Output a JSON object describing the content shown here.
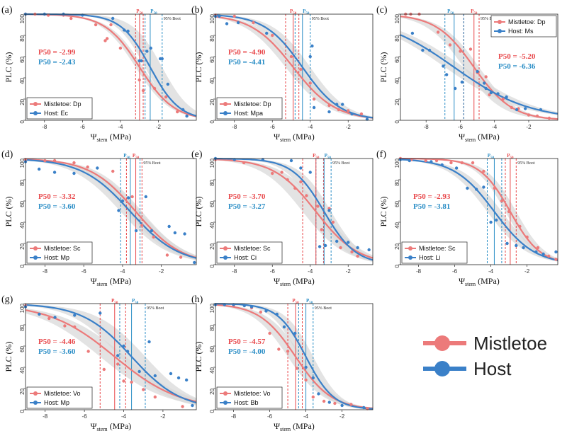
{
  "colors": {
    "mistletoe": "#ec7a7a",
    "host": "#3a80c8",
    "ci_band": "#d9d9d9",
    "p50_red": "#e8474a",
    "p50_blue": "#2b8ec6"
  },
  "common": {
    "xlabel_main": "Ψ",
    "xlabel_sub": "stem",
    "xlabel_unit": " (MPa)",
    "ylabel": "PLC (%)",
    "boot_label": "95% Boot",
    "p50_top": "P",
    "p50_sub": "50",
    "yticks": [
      "0",
      "20",
      "40",
      "60",
      "80",
      "100"
    ]
  },
  "legend": {
    "mistletoe": "Mistletoe",
    "host": "Host"
  },
  "chart_data": [
    {
      "panel": "(a)",
      "type": "scatter",
      "xlim": [
        -9,
        0
      ],
      "ylim": [
        0,
        100
      ],
      "xticks": [
        "-8",
        "-6",
        "-4",
        "-2"
      ],
      "xtick_values": [
        -8,
        -6,
        -4,
        -2
      ],
      "mistletoe": {
        "label": "Mistletoe: Dp",
        "p50_text": "P50 = -2.99",
        "p50": -2.99,
        "slope": 1.1,
        "ci": [
          -3.2,
          -2.8
        ],
        "points": [
          [
            -9,
            100
          ],
          [
            -8.5,
            100
          ],
          [
            -7.8,
            99
          ],
          [
            -7,
            99
          ],
          [
            -6.6,
            96
          ],
          [
            -5.3,
            90
          ],
          [
            -4.5,
            90
          ],
          [
            -4.8,
            75
          ],
          [
            -4.7,
            77
          ],
          [
            -4,
            68
          ],
          [
            -3,
            38
          ],
          [
            -2.8,
            28
          ],
          [
            -2.2,
            30
          ],
          [
            -1.6,
            22
          ],
          [
            -1,
            8
          ]
        ]
      },
      "host": {
        "label": "Host: Ec",
        "p50_text": "P50 = -2.43",
        "p50": -2.43,
        "slope": 1.3,
        "ci": [
          -2.7,
          -1.8
        ],
        "points": [
          [
            -9,
            100
          ],
          [
            -8,
            100
          ],
          [
            -7,
            100
          ],
          [
            -6,
            99
          ],
          [
            -4.4,
            96
          ],
          [
            -3.8,
            85
          ],
          [
            -3.6,
            84
          ],
          [
            -3,
            56
          ],
          [
            -2.9,
            56
          ],
          [
            -2.6,
            65
          ],
          [
            -2.4,
            68
          ],
          [
            -1.9,
            58
          ],
          [
            -1.8,
            58
          ],
          [
            -1.5,
            34
          ],
          [
            -0.7,
            10
          ],
          [
            -0.5,
            4
          ]
        ]
      }
    },
    {
      "panel": "(b)",
      "type": "scatter",
      "xlim": [
        -9,
        -0.7
      ],
      "ylim": [
        0,
        100
      ],
      "xticks": [
        "-8",
        "-6",
        "-4",
        "-2"
      ],
      "xtick_values": [
        -8,
        -6,
        -4,
        -2
      ],
      "mistletoe": {
        "label": "Mistletoe: Dp",
        "p50_text": "P50 = -4.90",
        "p50": -4.9,
        "slope": 0.9,
        "ci": [
          -5.3,
          -4.6
        ],
        "points": [
          [
            -9,
            99
          ],
          [
            -8,
            98
          ],
          [
            -7,
            92
          ],
          [
            -6,
            80
          ],
          [
            -5,
            60
          ],
          [
            -4.5,
            48
          ],
          [
            -4,
            35
          ],
          [
            -3.8,
            20
          ],
          [
            -3,
            14
          ],
          [
            -2.5,
            10
          ],
          [
            -2,
            9
          ],
          [
            -1.3,
            6
          ]
        ]
      },
      "host": {
        "label": "Host: Mpa",
        "p50_text": "P50 = -4.41",
        "p50": -4.41,
        "slope": 1.0,
        "ci": [
          -4.8,
          -4.0
        ],
        "points": [
          [
            -9,
            98
          ],
          [
            -8.8,
            98
          ],
          [
            -8.4,
            91
          ],
          [
            -7.8,
            92
          ],
          [
            -6.3,
            82
          ],
          [
            -4,
            60
          ],
          [
            -3.9,
            70
          ],
          [
            -3.8,
            12
          ],
          [
            -3,
            8
          ],
          [
            -2.6,
            15
          ],
          [
            -2.3,
            15
          ],
          [
            -1.8,
            6
          ],
          [
            -1,
            1
          ]
        ]
      }
    },
    {
      "panel": "(c)",
      "type": "scatter",
      "xlim": [
        -9.5,
        -0.3
      ],
      "ylim": [
        0,
        100
      ],
      "xticks": [
        "-8",
        "-6",
        "-4",
        "-2"
      ],
      "xtick_values": [
        -8,
        -6,
        -4,
        -2
      ],
      "mistletoe": {
        "label": "Mistletoe: Dp",
        "p50_text": "P50 = -5.20",
        "p50": -5.2,
        "slope": 0.9,
        "ci": [
          -5.8,
          -4.9
        ],
        "points": [
          [
            -9.2,
            100
          ],
          [
            -8.9,
            100
          ],
          [
            -8.4,
            100
          ],
          [
            -7.3,
            83
          ],
          [
            -6.6,
            71
          ],
          [
            -6,
            65
          ],
          [
            -5.4,
            67
          ],
          [
            -5,
            45
          ],
          [
            -4.5,
            41
          ],
          [
            -4.3,
            24
          ],
          [
            -3.5,
            20
          ],
          [
            -3,
            12
          ],
          [
            -2.6,
            11
          ],
          [
            -2,
            5
          ],
          [
            -1.5,
            4
          ],
          [
            -0.8,
            2
          ]
        ]
      },
      "host": {
        "label": "Host: Ms",
        "p50_text": "P50 = -6.36",
        "p50": -6.36,
        "slope": 0.45,
        "ci": [
          -6.9,
          -5.8
        ],
        "points": [
          [
            -8.8,
            82
          ],
          [
            -8.2,
            66
          ],
          [
            -7.8,
            66
          ],
          [
            -7,
            51
          ],
          [
            -6.8,
            43
          ],
          [
            -6.3,
            30
          ],
          [
            -5.9,
            36
          ],
          [
            -5,
            46
          ],
          [
            -4.6,
            35
          ],
          [
            -4.5,
            30
          ],
          [
            -4.2,
            26
          ],
          [
            -3.8,
            25
          ],
          [
            -3.3,
            22
          ],
          [
            -2.7,
            10
          ],
          [
            -2.2,
            11
          ],
          [
            -1.3,
            10
          ]
        ]
      }
    },
    {
      "panel": "(d)",
      "type": "scatter",
      "xlim": [
        -9,
        -0.2
      ],
      "ylim": [
        0,
        100
      ],
      "xticks": [
        "-8",
        "-6",
        "-4",
        "-2"
      ],
      "xtick_values": [
        -8,
        -6,
        -4,
        -2
      ],
      "mistletoe": {
        "label": "Mistletoe: Sc",
        "p50_text": "P50 = -3.32",
        "p50": -3.32,
        "slope": 0.85,
        "ci": [
          -3.8,
          -3.0
        ],
        "points": [
          [
            -9,
            99
          ],
          [
            -8,
            98
          ],
          [
            -7.5,
            98
          ],
          [
            -6.5,
            96
          ],
          [
            -5.8,
            92
          ],
          [
            -4.5,
            88
          ],
          [
            -3.5,
            64
          ],
          [
            -3,
            37
          ],
          [
            -2.4,
            26
          ],
          [
            -1.7,
            9
          ],
          [
            -1,
            7
          ]
        ]
      },
      "host": {
        "label": "Host: Mp",
        "p50_text": "P50 = -3.60",
        "p50": -3.6,
        "slope": 0.8,
        "ci": [
          -4.1,
          -3.1
        ],
        "points": [
          [
            -9,
            97
          ],
          [
            -8.3,
            90
          ],
          [
            -7.5,
            87
          ],
          [
            -6.5,
            86
          ],
          [
            -5.3,
            91
          ],
          [
            -4.2,
            51
          ],
          [
            -4,
            60
          ],
          [
            -3.7,
            63
          ],
          [
            -3.3,
            32
          ],
          [
            -2.8,
            64
          ],
          [
            -2.5,
            32
          ],
          [
            -1.6,
            36
          ],
          [
            -1.3,
            30
          ],
          [
            -0.8,
            29
          ],
          [
            -0.3,
            2
          ]
        ]
      }
    },
    {
      "panel": "(e)",
      "type": "scatter",
      "xlim": [
        -9,
        -0.7
      ],
      "ylim": [
        0,
        100
      ],
      "xticks": [
        "-8",
        "-6",
        "-4",
        "-2"
      ],
      "xtick_values": [
        -8,
        -6,
        -4,
        -2
      ],
      "mistletoe": {
        "label": "Mistletoe: Sc",
        "p50_text": "P50 = -3.70",
        "p50": -3.7,
        "slope": 0.9,
        "ci": [
          -4.4,
          -3.3
        ],
        "points": [
          [
            -9,
            99
          ],
          [
            -7.5,
            96
          ],
          [
            -6,
            86
          ],
          [
            -5.5,
            87
          ],
          [
            -5.2,
            80
          ],
          [
            -4.8,
            72
          ],
          [
            -4.5,
            78
          ],
          [
            -4.2,
            65
          ],
          [
            -3.6,
            55
          ],
          [
            -3.4,
            33
          ],
          [
            -3,
            53
          ],
          [
            -2.8,
            40
          ],
          [
            -2.4,
            16
          ],
          [
            -1.8,
            12
          ],
          [
            -1.5,
            8
          ]
        ]
      },
      "host": {
        "label": "Host: Ci",
        "p50_text": "P50 = -3.27",
        "p50": -3.27,
        "slope": 1.2,
        "ci": [
          -3.7,
          -2.9
        ],
        "points": [
          [
            -9,
            100
          ],
          [
            -8,
            99
          ],
          [
            -6.5,
            99
          ],
          [
            -5,
            98
          ],
          [
            -4.5,
            91
          ],
          [
            -4,
            87
          ],
          [
            -3,
            51
          ],
          [
            -3.5,
            17
          ],
          [
            -3.2,
            18
          ],
          [
            -2.6,
            22
          ],
          [
            -2,
            21
          ],
          [
            -1.5,
            16
          ],
          [
            -0.9,
            14
          ]
        ]
      }
    },
    {
      "panel": "(f)",
      "type": "scatter",
      "xlim": [
        -9,
        -0.3
      ],
      "ylim": [
        0,
        100
      ],
      "xticks": [
        "-8",
        "-6",
        "-4",
        "-2"
      ],
      "xtick_values": [
        -8,
        -6,
        -4,
        -2
      ],
      "mistletoe": {
        "label": "Mistletoe: Sc",
        "p50_text": "P50 = -2.93",
        "p50": -2.93,
        "slope": 1.2,
        "ci": [
          -3.2,
          -2.6
        ],
        "points": [
          [
            -9,
            100
          ],
          [
            -8.4,
            99
          ],
          [
            -7.6,
            98
          ],
          [
            -7,
            98
          ],
          [
            -6.2,
            96
          ],
          [
            -5.6,
            96
          ],
          [
            -5,
            96
          ],
          [
            -4.4,
            88
          ],
          [
            -3.8,
            72
          ],
          [
            -3.4,
            60
          ],
          [
            -3,
            50
          ],
          [
            -2.4,
            36
          ],
          [
            -2,
            26
          ],
          [
            -1.4,
            16
          ],
          [
            -0.8,
            8
          ],
          [
            -0.4,
            5
          ]
        ]
      },
      "host": {
        "label": "Host: Li",
        "p50_text": "P50 = -3.81",
        "p50": -3.81,
        "slope": 0.9,
        "ci": [
          -4.2,
          -3.4
        ],
        "points": [
          [
            -9,
            99
          ],
          [
            -8.5,
            98
          ],
          [
            -7.3,
            97
          ],
          [
            -6.7,
            94
          ],
          [
            -5.9,
            91
          ],
          [
            -5.3,
            72
          ],
          [
            -4.8,
            71
          ],
          [
            -4.4,
            73
          ],
          [
            -4,
            40
          ],
          [
            -3.7,
            42
          ],
          [
            -3.1,
            20
          ],
          [
            -2.6,
            18
          ],
          [
            -2.2,
            16
          ],
          [
            -1.5,
            12
          ],
          [
            -1.1,
            10
          ],
          [
            -0.4,
            12
          ]
        ]
      }
    },
    {
      "panel": "(g)",
      "type": "scatter",
      "xlim": [
        -9,
        -0.3
      ],
      "ylim": [
        0,
        100
      ],
      "xticks": [
        "-8",
        "-6",
        "-4",
        "-2"
      ],
      "xtick_values": [
        -8,
        -6,
        -4,
        -2
      ],
      "mistletoe": {
        "label": "Mistletoe: Vo",
        "p50_text": "P50 = -4.46",
        "p50": -4.46,
        "slope": 0.6,
        "ci": [
          -5.2,
          -3.9
        ],
        "points": [
          [
            -9,
            98
          ],
          [
            -7.8,
            86
          ],
          [
            -7,
            79
          ],
          [
            -6.5,
            78
          ],
          [
            -5.8,
            55
          ],
          [
            -5,
            38
          ],
          [
            -4.3,
            43
          ],
          [
            -4,
            27
          ],
          [
            -3.6,
            26
          ],
          [
            -3,
            19
          ],
          [
            -2.4,
            12
          ],
          [
            -1,
            3
          ]
        ]
      },
      "host": {
        "label": "Host: Mp",
        "p50_text": "P50 = -3.60",
        "p50": -3.6,
        "slope": 0.8,
        "ci": [
          -4.2,
          -2.9
        ],
        "points": [
          [
            -9,
            97
          ],
          [
            -8.3,
            90
          ],
          [
            -7.5,
            87
          ],
          [
            -6.5,
            89
          ],
          [
            -5.2,
            91
          ],
          [
            -4.3,
            51
          ],
          [
            -4,
            60
          ],
          [
            -3.8,
            55
          ],
          [
            -3.2,
            36
          ],
          [
            -2.7,
            64
          ],
          [
            -2.4,
            32
          ],
          [
            -1.6,
            34
          ],
          [
            -1.2,
            30
          ],
          [
            -0.8,
            28
          ],
          [
            -0.5,
            4
          ]
        ]
      }
    },
    {
      "panel": "(h)",
      "type": "scatter",
      "xlim": [
        -9,
        -0.3
      ],
      "ylim": [
        0,
        100
      ],
      "xticks": [
        "-8",
        "-6",
        "-4",
        "-2"
      ],
      "xtick_values": [
        -8,
        -6,
        -4,
        -2
      ],
      "mistletoe": {
        "label": "Mistletoe: Vo",
        "p50_text": "P50 = -4.57",
        "p50": -4.57,
        "slope": 1.0,
        "ci": [
          -5.0,
          -4.2
        ],
        "points": [
          [
            -9,
            99
          ],
          [
            -8,
            98
          ],
          [
            -7,
            96
          ],
          [
            -6.5,
            92
          ],
          [
            -6,
            72
          ],
          [
            -5.5,
            57
          ],
          [
            -5,
            55
          ],
          [
            -4.5,
            39
          ],
          [
            -4,
            28
          ],
          [
            -3.6,
            12
          ],
          [
            -3,
            8
          ],
          [
            -2.4,
            6
          ],
          [
            -1.5,
            5
          ],
          [
            -0.6,
            1
          ]
        ]
      },
      "host": {
        "label": "Host: Bb",
        "p50_text": "P50 = -4.00",
        "p50": -4.0,
        "slope": 1.3,
        "ci": [
          -4.4,
          -3.6
        ],
        "points": [
          [
            -9,
            99
          ],
          [
            -8.5,
            99
          ],
          [
            -8,
            99
          ],
          [
            -7.4,
            98
          ],
          [
            -7,
            97
          ],
          [
            -6.2,
            93
          ],
          [
            -5.6,
            90
          ],
          [
            -5.2,
            78
          ],
          [
            -4.6,
            72
          ],
          [
            -4,
            40
          ],
          [
            -3.6,
            30
          ],
          [
            -3.3,
            15
          ],
          [
            -2.7,
            7
          ],
          [
            -2,
            4
          ],
          [
            -0.8,
            2
          ]
        ]
      }
    }
  ]
}
